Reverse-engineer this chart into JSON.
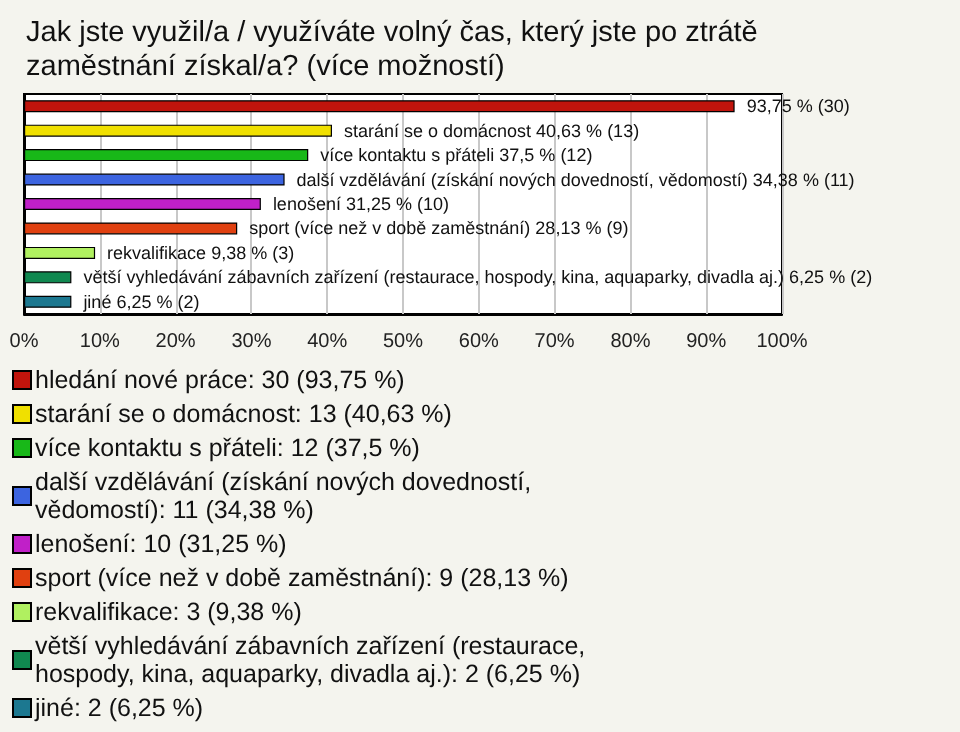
{
  "chart_data": {
    "type": "bar",
    "orientation": "horizontal",
    "title": "Jak jste využil/a / využíváte volný čas, který jste po ztrátě zaměstnání získal/a? (více možností)",
    "categories": [
      null,
      null,
      null,
      null,
      null,
      null,
      null,
      null,
      null
    ],
    "series": [
      {
        "name": "hledání nové práce: 30 (93,75 %)",
        "color": "#c0140c",
        "values": [
          93.75,
          null,
          null,
          null,
          null,
          null,
          null,
          null,
          null
        ],
        "value_labels": [
          "93,75 % (30)",
          null,
          null,
          null,
          null,
          null,
          null,
          null,
          null
        ]
      },
      {
        "name": "starání se o domácnost: 13 (40,63 %)",
        "color": "#f0e000",
        "values": [
          null,
          40.63,
          null,
          null,
          null,
          null,
          null,
          null,
          null
        ],
        "value_labels": [
          null,
          "starání se o domácnost 40,63 % (13)",
          null,
          null,
          null,
          null,
          null,
          null,
          null
        ]
      },
      {
        "name": "více kontaktu s přáteli: 12 (37,5 %)",
        "color": "#18b818",
        "values": [
          null,
          null,
          37.5,
          null,
          null,
          null,
          null,
          null,
          null
        ],
        "value_labels": [
          null,
          null,
          "více kontaktu s přáteli 37,5 % (12)",
          null,
          null,
          null,
          null,
          null,
          null
        ]
      },
      {
        "name": "další vzdělávání (získání nových dovedností, vědomostí): 11 (34,38 %)",
        "color": "#3c64e0",
        "values": [
          null,
          null,
          null,
          34.38,
          null,
          null,
          null,
          null,
          null
        ],
        "value_labels": [
          null,
          null,
          null,
          "další vzdělávání (získání nových dovedností, vědomostí) 34,38 % (11)",
          null,
          null,
          null,
          null,
          null
        ]
      },
      {
        "name": "lenošení: 10 (31,25 %)",
        "color": "#c020c8",
        "values": [
          null,
          null,
          null,
          null,
          31.25,
          null,
          null,
          null,
          null
        ],
        "value_labels": [
          null,
          null,
          null,
          null,
          "lenošení 31,25 % (10)",
          null,
          null,
          null,
          null
        ]
      },
      {
        "name": "sport (více než v době zaměstnání): 9 (28,13 %)",
        "color": "#e04010",
        "values": [
          null,
          null,
          null,
          null,
          null,
          28.13,
          null,
          null,
          null
        ],
        "value_labels": [
          null,
          null,
          null,
          null,
          null,
          "sport (více než v době zaměstnání) 28,13 % (9)",
          null,
          null,
          null
        ]
      },
      {
        "name": "rekvalifikace: 3 (9,38 %)",
        "color": "#b0f060",
        "values": [
          null,
          null,
          null,
          null,
          null,
          null,
          9.38,
          null,
          null
        ],
        "value_labels": [
          null,
          null,
          null,
          null,
          null,
          null,
          "rekvalifikace 9,38 % (3)",
          null,
          null
        ]
      },
      {
        "name": "větší vyhledávání zábavních zařízení (restaurace, hospody, kina, aquaparky, divadla aj.): 2 (6,25 %)",
        "color": "#108850",
        "values": [
          null,
          null,
          null,
          null,
          null,
          null,
          null,
          6.25,
          null
        ],
        "value_labels": [
          null,
          null,
          null,
          null,
          null,
          null,
          null,
          "větší vyhledávání zábavních zařízení (restaurace, hospody, kina, aquaparky, divadla aj.) 6,25 % (2)",
          null
        ]
      },
      {
        "name": "jiné: 2 (6,25 %)",
        "color": "#1c7890",
        "values": [
          null,
          null,
          null,
          null,
          null,
          null,
          null,
          null,
          6.25
        ],
        "value_labels": [
          null,
          null,
          null,
          null,
          null,
          null,
          null,
          null,
          "jiné 6,25 % (2)"
        ]
      }
    ],
    "xlim": [
      0,
      100
    ],
    "xticks": [
      {
        "value": 0,
        "label": "0%"
      },
      {
        "value": 10,
        "label": "10%"
      },
      {
        "value": 20,
        "label": "20%"
      },
      {
        "value": 30,
        "label": "30%"
      },
      {
        "value": 40,
        "label": "40%"
      },
      {
        "value": 50,
        "label": "50%"
      },
      {
        "value": 60,
        "label": "60%"
      },
      {
        "value": 70,
        "label": "70%"
      },
      {
        "value": 80,
        "label": "80%"
      },
      {
        "value": 90,
        "label": "90%"
      },
      {
        "value": 100,
        "label": "100%"
      }
    ],
    "grid": "x",
    "legend": "bottom",
    "tick_labels": "x"
  }
}
